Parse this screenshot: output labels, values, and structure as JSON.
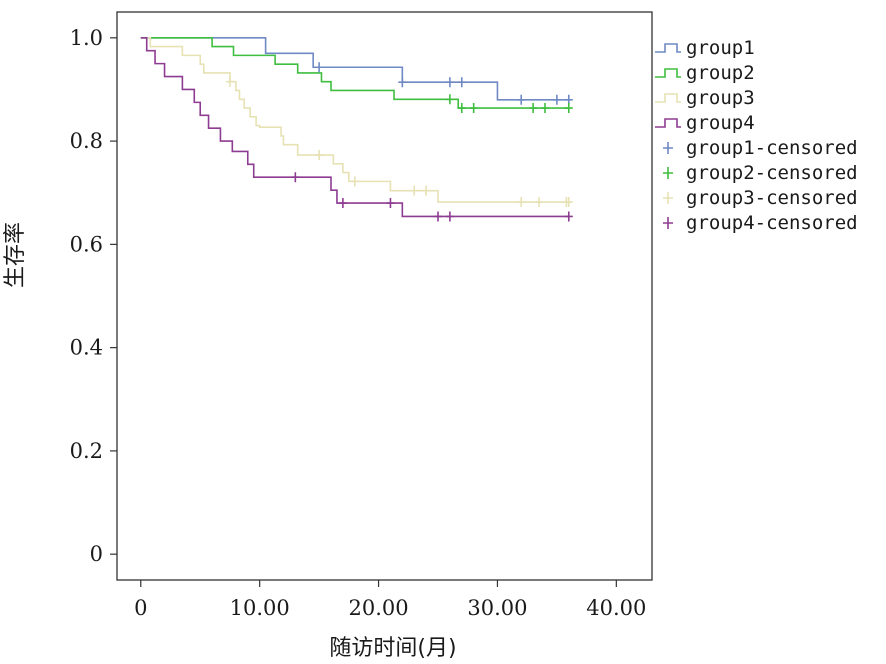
{
  "chart_data": {
    "type": "line",
    "subtype": "kaplan-meier survival curve",
    "xlabel": "随访时间(月)",
    "ylabel": "生存率",
    "xlim": [
      -2,
      43
    ],
    "ylim": [
      -0.05,
      1.05
    ],
    "xticks": [
      0,
      10,
      20,
      30,
      40
    ],
    "xtick_labels": [
      "0",
      "10.00",
      "20.00",
      "30.00",
      "40.00"
    ],
    "yticks": [
      0,
      0.2,
      0.4,
      0.6,
      0.8,
      1.0
    ],
    "ytick_labels": [
      "0",
      "0.2",
      "0.4",
      "0.6",
      "0.8",
      "1.0"
    ],
    "grid": false,
    "legend_position": "right",
    "series": [
      {
        "name": "group1",
        "color": "#6f89c4",
        "steps": [
          [
            0,
            1.0
          ],
          [
            10.5,
            0.97
          ],
          [
            14.5,
            0.943
          ],
          [
            22,
            0.914
          ],
          [
            30,
            0.88
          ],
          [
            36,
            0.88
          ]
        ],
        "censored_name": "group1-censored",
        "censored": [
          [
            15,
            0.943
          ],
          [
            22,
            0.914
          ],
          [
            26,
            0.914
          ],
          [
            27,
            0.914
          ],
          [
            32,
            0.88
          ],
          [
            35,
            0.88
          ],
          [
            36,
            0.88
          ]
        ]
      },
      {
        "name": "group2",
        "color": "#3fbe3f",
        "steps": [
          [
            0,
            1.0
          ],
          [
            6,
            0.983
          ],
          [
            7.8,
            0.966
          ],
          [
            11.3,
            0.949
          ],
          [
            13.2,
            0.932
          ],
          [
            15.2,
            0.915
          ],
          [
            16,
            0.898
          ],
          [
            21.3,
            0.881
          ],
          [
            26.7,
            0.864
          ],
          [
            36,
            0.864
          ]
        ],
        "censored_name": "group2-censored",
        "censored": [
          [
            26,
            0.881
          ],
          [
            27,
            0.864
          ],
          [
            28,
            0.864
          ],
          [
            33,
            0.864
          ],
          [
            34,
            0.864
          ],
          [
            36,
            0.864
          ]
        ]
      },
      {
        "name": "group3",
        "color": "#e6e2b4",
        "steps": [
          [
            0,
            1.0
          ],
          [
            0.8,
            0.983
          ],
          [
            3.5,
            0.966
          ],
          [
            5,
            0.949
          ],
          [
            5.3,
            0.932
          ],
          [
            7.5,
            0.915
          ],
          [
            8,
            0.898
          ],
          [
            8.3,
            0.881
          ],
          [
            8.7,
            0.864
          ],
          [
            9.2,
            0.847
          ],
          [
            9.7,
            0.83
          ],
          [
            10,
            0.827
          ],
          [
            11.8,
            0.81
          ],
          [
            12,
            0.793
          ],
          [
            13.2,
            0.773
          ],
          [
            16.2,
            0.756
          ],
          [
            17,
            0.739
          ],
          [
            17.5,
            0.722
          ],
          [
            21,
            0.704
          ],
          [
            25,
            0.682
          ],
          [
            36,
            0.682
          ]
        ],
        "censored_name": "group3-censored",
        "censored": [
          [
            7.5,
            0.915
          ],
          [
            15,
            0.773
          ],
          [
            18,
            0.722
          ],
          [
            23,
            0.704
          ],
          [
            24,
            0.704
          ],
          [
            32,
            0.682
          ],
          [
            33.5,
            0.682
          ],
          [
            35.8,
            0.682
          ],
          [
            36,
            0.682
          ]
        ]
      },
      {
        "name": "group4",
        "color": "#8e3c92",
        "steps": [
          [
            0,
            1.0
          ],
          [
            0.5,
            0.975
          ],
          [
            1.2,
            0.95
          ],
          [
            2,
            0.925
          ],
          [
            3.5,
            0.9
          ],
          [
            4.5,
            0.875
          ],
          [
            5,
            0.85
          ],
          [
            5.7,
            0.825
          ],
          [
            6.7,
            0.8
          ],
          [
            7.7,
            0.78
          ],
          [
            9,
            0.755
          ],
          [
            9.5,
            0.73
          ],
          [
            16,
            0.705
          ],
          [
            16.5,
            0.68
          ],
          [
            22,
            0.654
          ],
          [
            36,
            0.654
          ]
        ],
        "censored_name": "group4-censored",
        "censored": [
          [
            13,
            0.73
          ],
          [
            17,
            0.68
          ],
          [
            21,
            0.68
          ],
          [
            25,
            0.654
          ],
          [
            26,
            0.654
          ],
          [
            36,
            0.654
          ]
        ]
      }
    ]
  }
}
